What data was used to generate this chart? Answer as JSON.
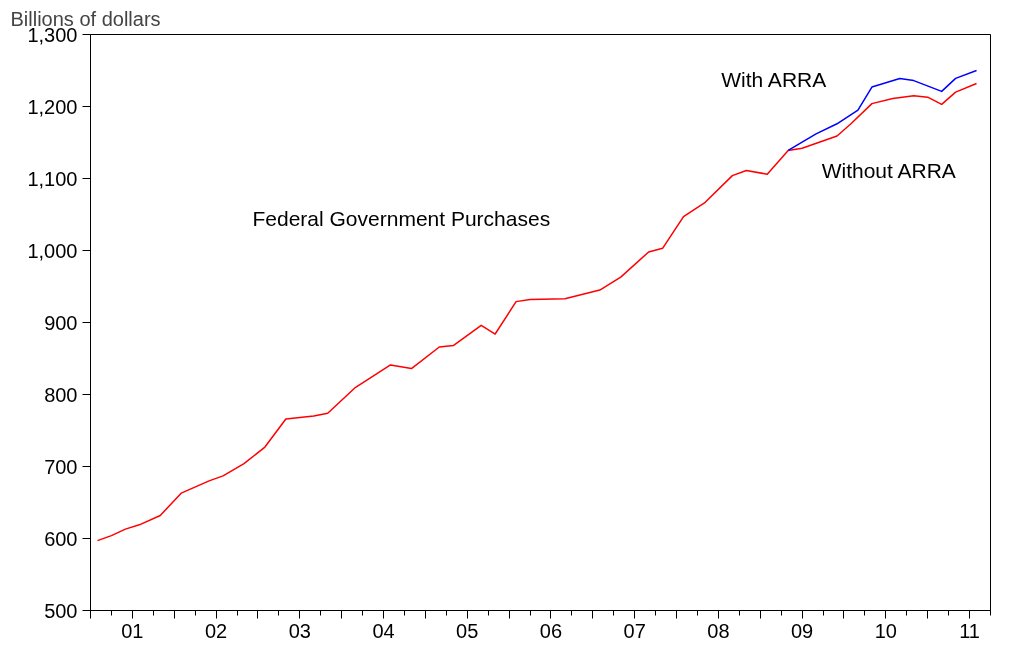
{
  "chart_data": {
    "type": "line",
    "ylabel": "Billions of dollars",
    "annotations": [
      "Federal Government Purchases"
    ],
    "xlim": [
      "2001-01",
      "2011-10"
    ],
    "ylim": [
      500,
      1300
    ],
    "xticks": [
      {
        "value": "2001-01",
        "label": null
      },
      {
        "value": "2001-07",
        "label": "01"
      },
      {
        "value": "2002-01",
        "label": null
      },
      {
        "value": "2002-07",
        "label": "02"
      },
      {
        "value": "2003-01",
        "label": null
      },
      {
        "value": "2003-07",
        "label": "03"
      },
      {
        "value": "2004-01",
        "label": null
      },
      {
        "value": "2004-07",
        "label": "04"
      },
      {
        "value": "2005-01",
        "label": null
      },
      {
        "value": "2005-07",
        "label": "05"
      },
      {
        "value": "2006-01",
        "label": null
      },
      {
        "value": "2006-07",
        "label": "06"
      },
      {
        "value": "2007-01",
        "label": null
      },
      {
        "value": "2007-07",
        "label": "07"
      },
      {
        "value": "2008-01",
        "label": null
      },
      {
        "value": "2008-07",
        "label": "08"
      },
      {
        "value": "2009-01",
        "label": null
      },
      {
        "value": "2009-07",
        "label": "09"
      },
      {
        "value": "2010-01",
        "label": null
      },
      {
        "value": "2010-07",
        "label": "10"
      },
      {
        "value": "2011-01",
        "label": null
      },
      {
        "value": "2011-07",
        "label": "11"
      }
    ],
    "yticks": [
      500,
      600,
      700,
      800,
      900,
      {
        "value": 1000,
        "label": "1,000"
      },
      {
        "value": 1100,
        "label": "1,100"
      },
      {
        "value": 1200,
        "label": "1,200"
      },
      {
        "value": 1300,
        "label": "1,300"
      }
    ],
    "grid": false,
    "line_style": "solid",
    "series": [
      {
        "name": "Without ARRA",
        "color": "#ff0000",
        "x": [
          "2001-02",
          "2001-04",
          "2001-06",
          "2001-08",
          "2001-11",
          "2002-02",
          "2002-06",
          "2002-08",
          "2002-11",
          "2003-02",
          "2003-05",
          "2003-09",
          "2003-11",
          "2004-03",
          "2004-08",
          "2004-11",
          "2005-03",
          "2005-05",
          "2005-09",
          "2005-11",
          "2006-02",
          "2006-04",
          "2006-09",
          "2007-02",
          "2007-05",
          "2007-09",
          "2007-11",
          "2008-02",
          "2008-05",
          "2008-09",
          "2008-11",
          "2009-02",
          "2009-05",
          "2009-07",
          "2009-12",
          "2010-02",
          "2010-05",
          "2010-08",
          "2010-11",
          "2011-01",
          "2011-03",
          "2011-05",
          "2011-08"
        ],
        "values": [
          597,
          604,
          613,
          619,
          632,
          663,
          680,
          687,
          704,
          727,
          766,
          770,
          774,
          810,
          841,
          836,
          866,
          868,
          896,
          884,
          929,
          932,
          933,
          945,
          963,
          998,
          1003,
          1047,
          1066,
          1104,
          1111,
          1106,
          1139,
          1142,
          1159,
          1176,
          1204,
          1211,
          1215,
          1213,
          1203,
          1220,
          1232
        ]
      },
      {
        "name": "With ARRA",
        "color": "#0000ff",
        "x": [
          "2009-05",
          "2009-09",
          "2009-12",
          "2010-03",
          "2010-05",
          "2010-09",
          "2010-11",
          "2011-03",
          "2011-05",
          "2011-08"
        ],
        "values": [
          1139,
          1162,
          1176,
          1195,
          1227,
          1239,
          1236,
          1221,
          1239,
          1250
        ]
      }
    ]
  }
}
